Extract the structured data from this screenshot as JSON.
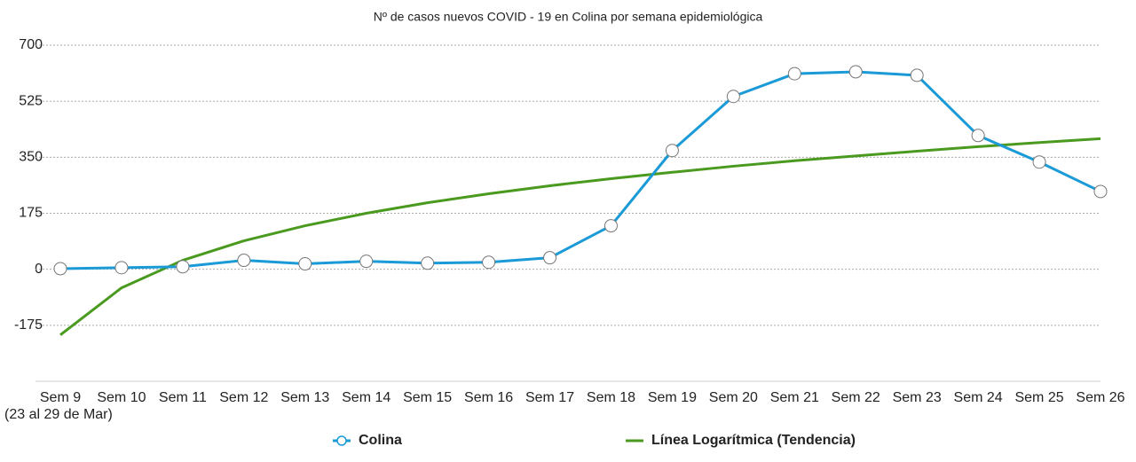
{
  "chart_data": {
    "type": "line",
    "title": "Nº de casos nuevos COVID - 19 en Colina por semana epidemiológica",
    "categories": [
      "Sem 9",
      "Sem 10",
      "Sem 11",
      "Sem 12",
      "Sem 13",
      "Sem 14",
      "Sem 15",
      "Sem 16",
      "Sem 17",
      "Sem 18",
      "Sem 19",
      "Sem 20",
      "Sem 21",
      "Sem 22",
      "Sem 23",
      "Sem 24",
      "Sem 25",
      "Sem 26"
    ],
    "annotation": "(23 al 29 de Mar)",
    "series": [
      {
        "name": "Colina",
        "color": "#1a9ad6",
        "markers": true,
        "values": [
          2,
          5,
          8,
          28,
          17,
          25,
          19,
          22,
          36,
          136,
          371,
          540,
          611,
          617,
          606,
          418,
          335,
          243
        ]
      },
      {
        "name": "Línea Logarítmica (Tendencia)",
        "color": "#4a9a1f",
        "markers": false,
        "values": [
          -205,
          -58,
          28,
          89,
          136,
          175,
          208,
          236,
          261,
          283,
          303,
          322,
          339,
          354,
          369,
          383,
          396,
          408
        ]
      }
    ],
    "ylim": [
      -350,
      700
    ],
    "yticks": [
      -175,
      0,
      175,
      350,
      525,
      700
    ],
    "grid": true
  }
}
